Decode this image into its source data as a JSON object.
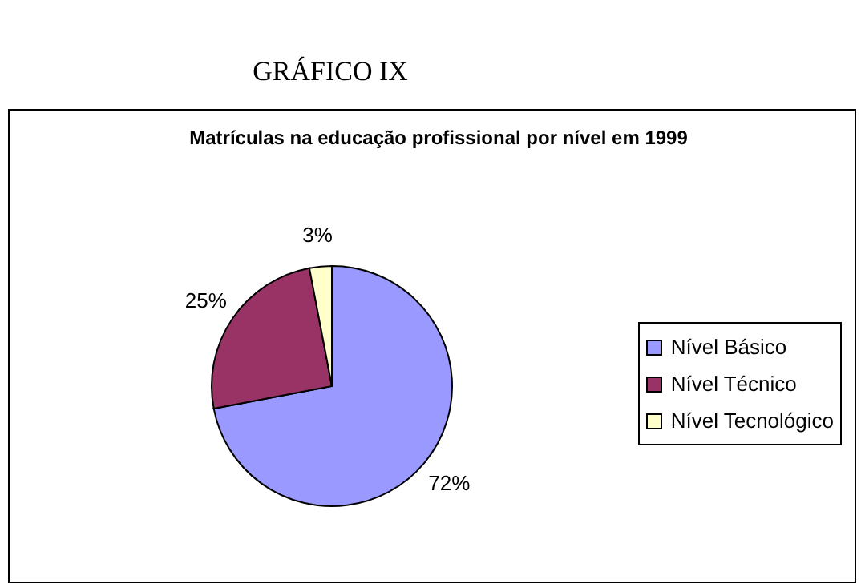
{
  "chart_data": {
    "type": "pie",
    "title": "GRÁFICO IX",
    "subtitle": "Matrículas na educação profissional por nível em 1999",
    "categories": [
      "Nível Básico",
      "Nível Técnico",
      "Nível Tecnológico"
    ],
    "values": [
      72,
      25,
      3
    ],
    "value_labels": [
      "72%",
      "25%",
      "3%"
    ],
    "colors": [
      "#9999ff",
      "#993366",
      "#ffffcc"
    ],
    "legend": "right"
  }
}
